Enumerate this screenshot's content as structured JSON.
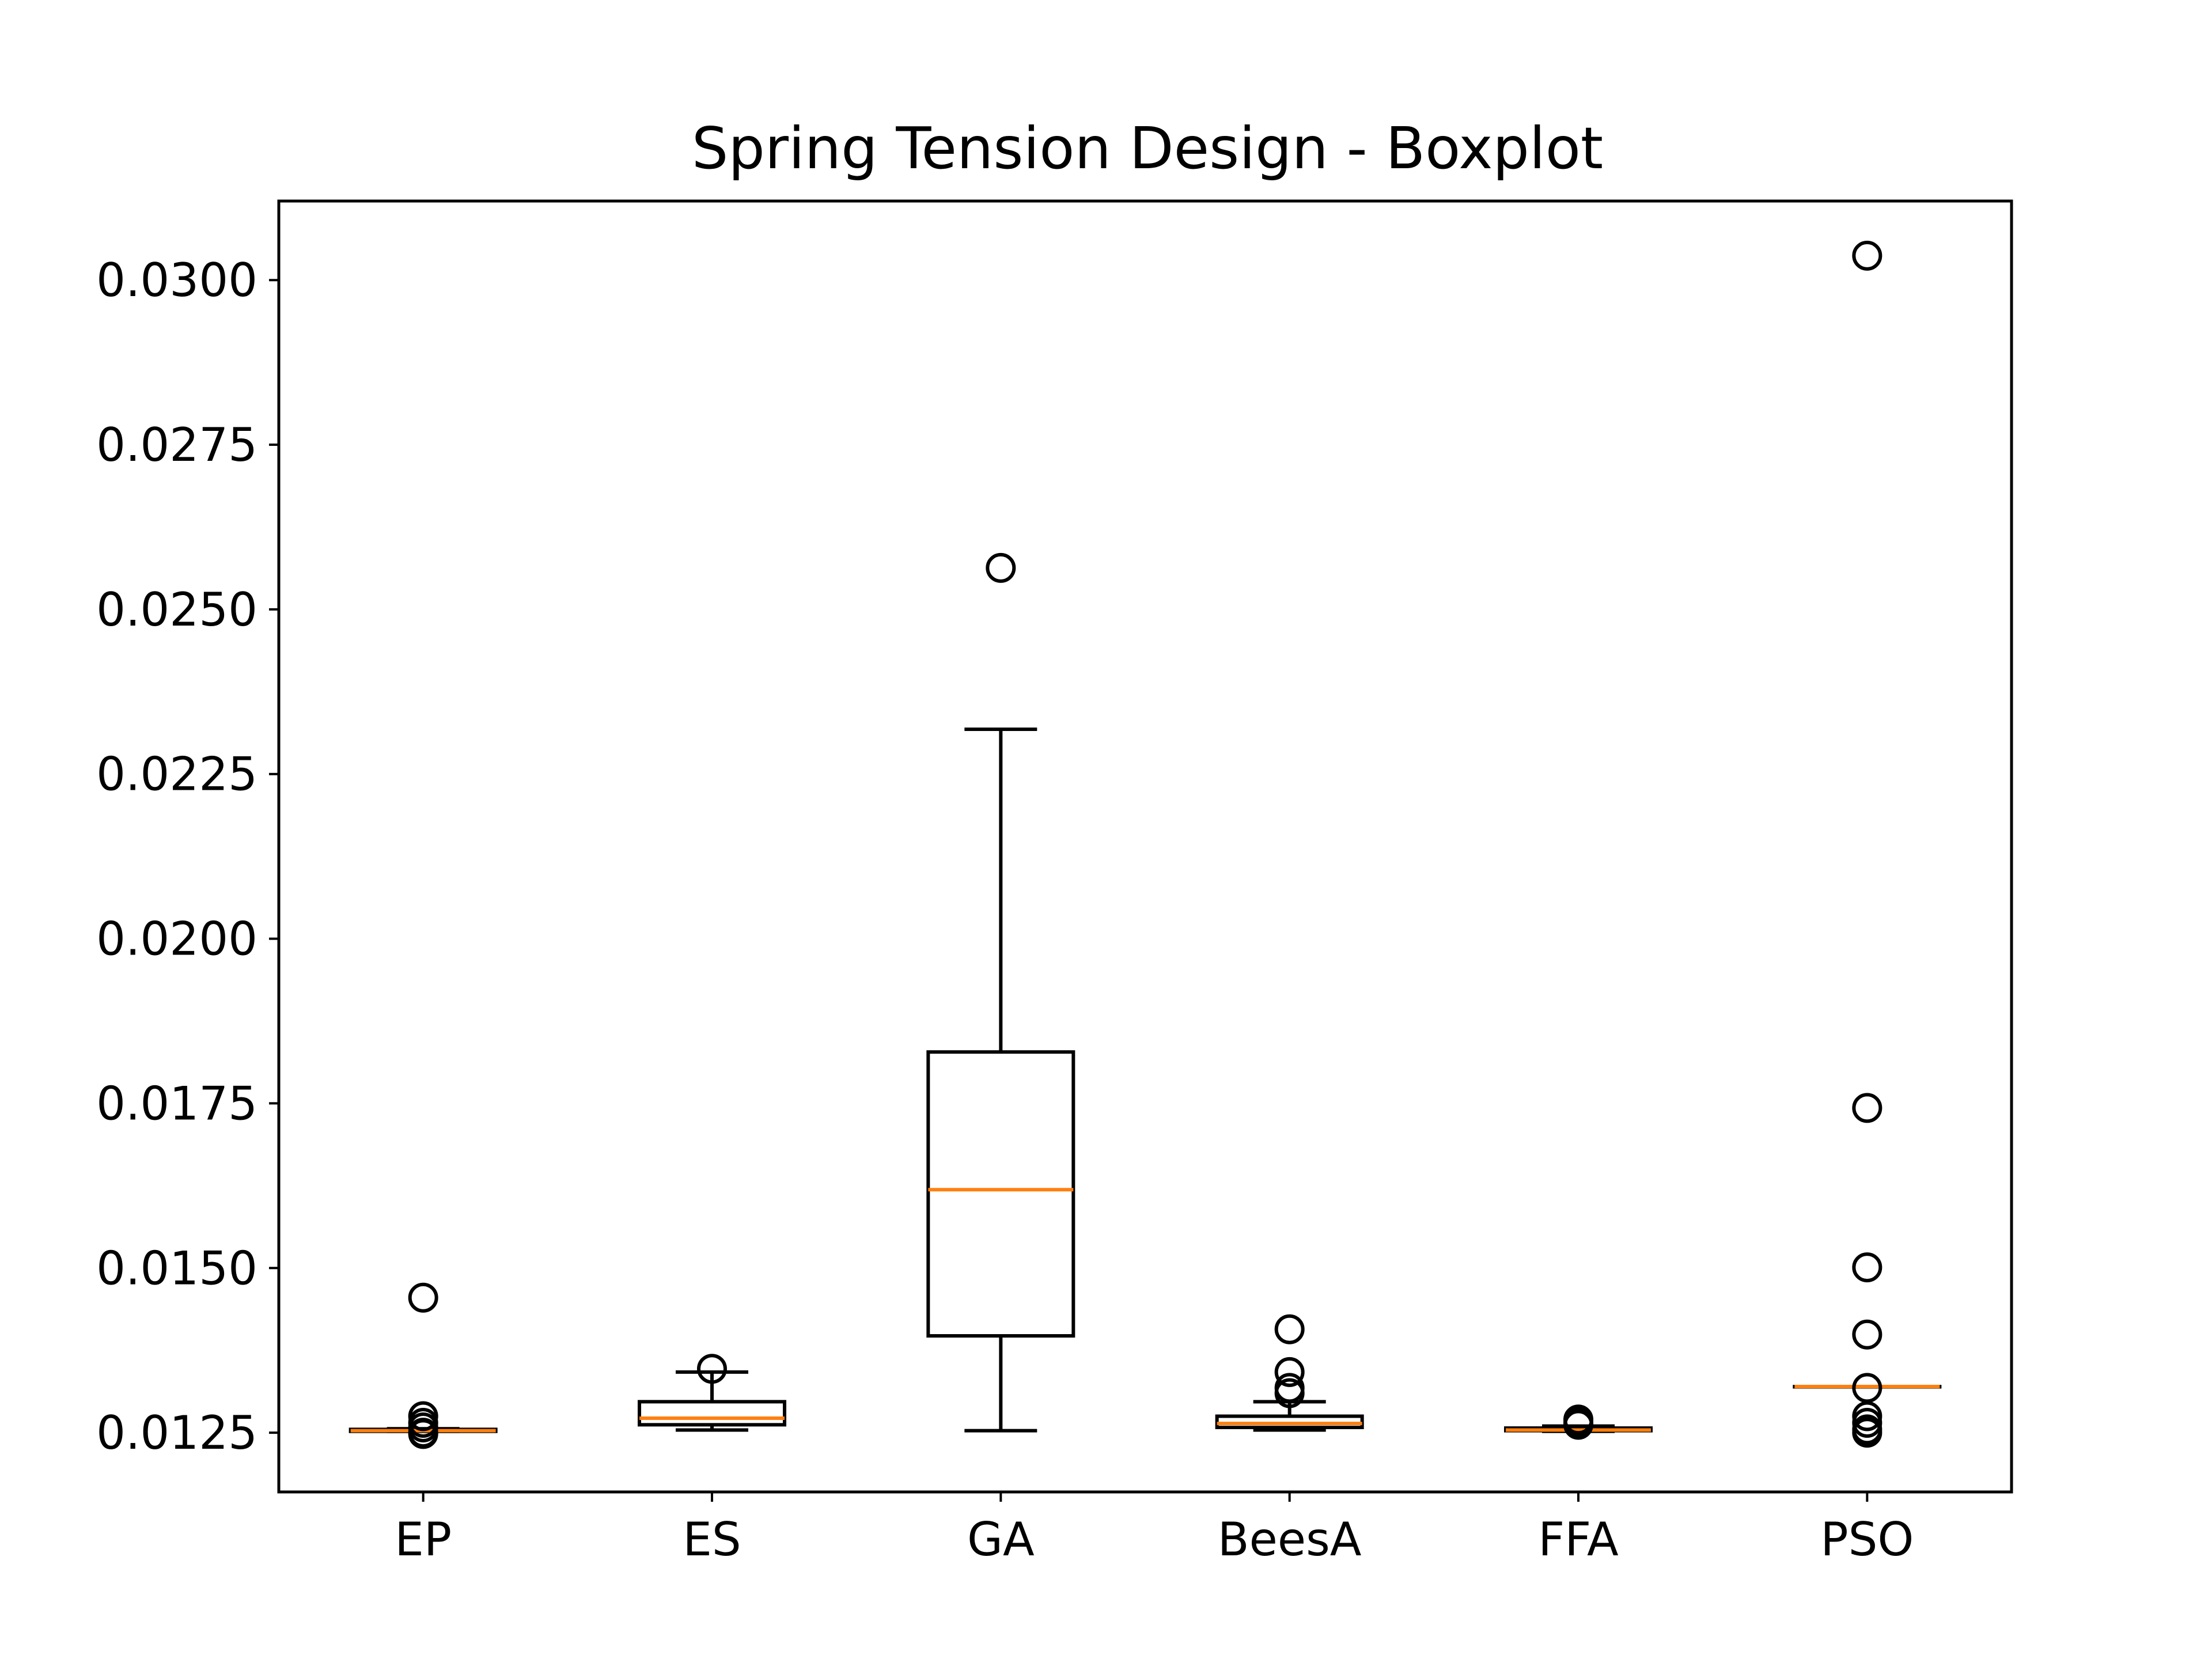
{
  "chart_data": {
    "type": "boxplot",
    "title": "Spring Tension Design - Boxplot",
    "xlabel": "",
    "ylabel": "",
    "ylim": [
      0.0116,
      0.0312
    ],
    "yticks": [
      0.0125,
      0.015,
      0.0175,
      0.02,
      0.0225,
      0.025,
      0.0275,
      0.03
    ],
    "ytick_labels": [
      "0.0125",
      "0.0150",
      "0.0175",
      "0.0200",
      "0.0225",
      "0.0250",
      "0.0275",
      "0.0300"
    ],
    "grid": false,
    "categories": [
      "EP",
      "ES",
      "GA",
      "BeesA",
      "FFA",
      "PSO"
    ],
    "boxes": [
      {
        "label": "EP",
        "whisker_low": 0.01252,
        "q1": 0.01252,
        "median": 0.01253,
        "q3": 0.01255,
        "whisker_high": 0.01256,
        "fliers": [
          0.01455,
          0.01275,
          0.01265,
          0.01258,
          0.0125,
          0.01248
        ]
      },
      {
        "label": "ES",
        "whisker_low": 0.01254,
        "q1": 0.01262,
        "median": 0.01272,
        "q3": 0.01297,
        "whisker_high": 0.01342,
        "fliers": [
          0.01347
        ]
      },
      {
        "label": "GA",
        "whisker_low": 0.01253,
        "q1": 0.01397,
        "median": 0.01619,
        "q3": 0.01828,
        "whisker_high": 0.02318,
        "fliers": [
          0.02563
        ]
      },
      {
        "label": "BeesA",
        "whisker_low": 0.01254,
        "q1": 0.01258,
        "median": 0.01264,
        "q3": 0.01275,
        "whisker_high": 0.01297,
        "fliers": [
          0.01407,
          0.01342,
          0.01318,
          0.0131
        ]
      },
      {
        "label": "FFA",
        "whisker_low": 0.01252,
        "q1": 0.01253,
        "median": 0.01254,
        "q3": 0.01257,
        "whisker_high": 0.0126,
        "fliers": [
          0.0127,
          0.01265,
          0.01262
        ]
      },
      {
        "label": "PSO",
        "whisker_low": 0.0132,
        "q1": 0.0132,
        "median": 0.0132,
        "q3": 0.0132,
        "whisker_high": 0.0132,
        "fliers": [
          0.03037,
          0.01743,
          0.01501,
          0.01399,
          0.01318,
          0.01275,
          0.01265,
          0.01255,
          0.0125
        ]
      }
    ],
    "colors": {
      "box": "#000000",
      "median": "#ff7f0e",
      "flier": "#000000",
      "background": "#ffffff"
    }
  }
}
